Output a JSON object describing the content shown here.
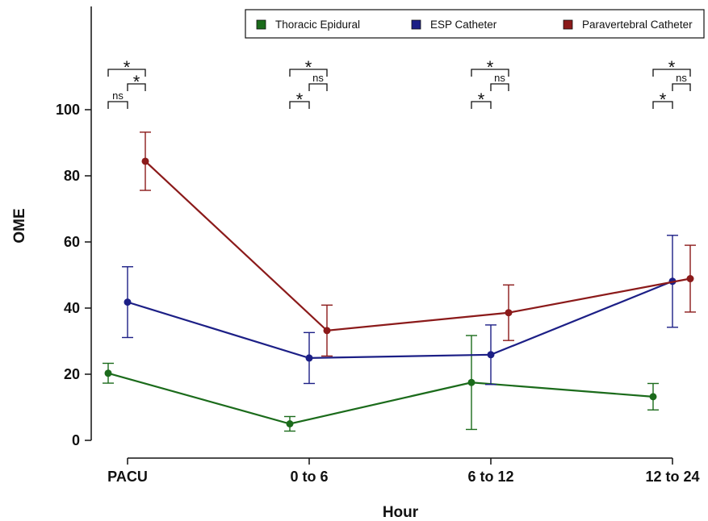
{
  "chart_data": {
    "type": "line",
    "title": "",
    "xlabel": "Hour",
    "ylabel": "OME",
    "categories": [
      "PACU",
      "0 to 6",
      "6 to 12",
      "12 to 24"
    ],
    "ylim": [
      0,
      110
    ],
    "yticks": [
      0,
      20,
      40,
      60,
      80,
      100
    ],
    "grid": false,
    "legend_position": "top-right",
    "series": [
      {
        "name": "Thoracic Epidural",
        "color": "#1b6b1b",
        "values": [
          20.3,
          5.0,
          17.5,
          13.2
        ],
        "lower": [
          17.3,
          2.8,
          3.3,
          9.2
        ],
        "upper": [
          23.3,
          7.2,
          31.7,
          17.2
        ]
      },
      {
        "name": "ESP Catheter",
        "color": "#1c1f86",
        "values": [
          41.8,
          24.9,
          25.9,
          48.1
        ],
        "lower": [
          31.1,
          17.2,
          16.9,
          34.2
        ],
        "upper": [
          52.5,
          32.6,
          34.9,
          62.0
        ]
      },
      {
        "name": "Paravertebral Catheter",
        "color": "#8b1a1a",
        "values": [
          84.4,
          33.2,
          38.6,
          48.9
        ],
        "lower": [
          75.6,
          25.5,
          30.2,
          38.8
        ],
        "upper": [
          93.2,
          40.9,
          47.0,
          59.0
        ]
      }
    ],
    "significance": [
      {
        "category": "PACU",
        "labels": [
          "*",
          "*",
          "ns"
        ]
      },
      {
        "category": "0 to 6",
        "labels": [
          "*",
          "ns",
          "*"
        ]
      },
      {
        "category": "6 to 12",
        "labels": [
          "*",
          "ns",
          "*"
        ]
      },
      {
        "category": "12 to 24",
        "labels": [
          "*",
          "ns",
          "*"
        ]
      }
    ]
  }
}
